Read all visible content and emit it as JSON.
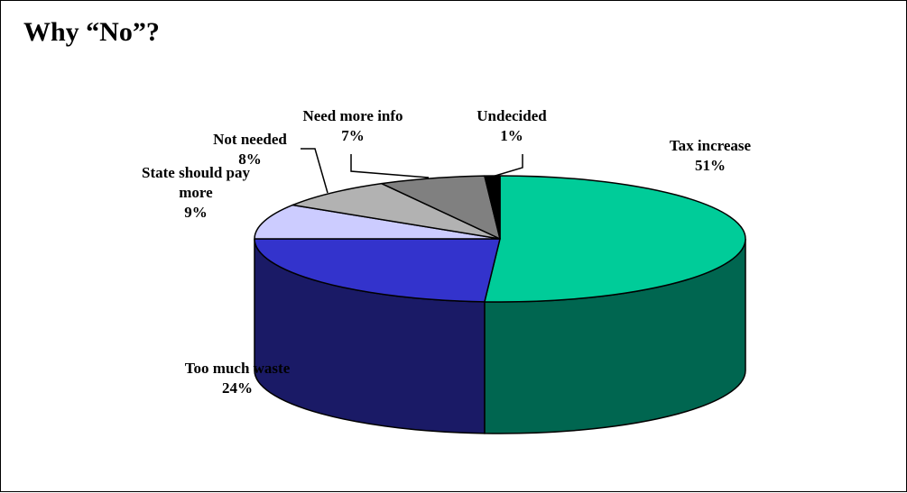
{
  "title": "Why “No”?",
  "chart_data": {
    "type": "pie",
    "style": "3d",
    "title": "Why “No”?",
    "slices": [
      {
        "label": [
          "Tax increase"
        ],
        "value": 51,
        "pct": "51%",
        "color": "#00CC99",
        "side_color": "#006650"
      },
      {
        "label": [
          "Too much waste"
        ],
        "value": 24,
        "pct": "24%",
        "color": "#3333CC",
        "side_color": "#1A1A66"
      },
      {
        "label": [
          "State should pay",
          "more"
        ],
        "value": 9,
        "pct": "9%",
        "color": "#CCCCFF",
        "side_color": "#8080B0"
      },
      {
        "label": [
          "Not needed"
        ],
        "value": 8,
        "pct": "8%",
        "color": "#B2B2B2",
        "side_color": "#7A7A7A"
      },
      {
        "label": [
          "Need more info"
        ],
        "value": 7,
        "pct": "7%",
        "color": "#808080",
        "side_color": "#505050"
      },
      {
        "label": [
          "Undecided"
        ],
        "value": 1,
        "pct": "1%",
        "color": "#000000",
        "side_color": "#000000"
      }
    ],
    "legend": "none"
  }
}
